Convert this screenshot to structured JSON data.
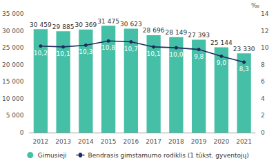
{
  "chart_data": {
    "type": "bar",
    "categories": [
      "2012",
      "2013",
      "2014",
      "2015",
      "2016",
      "2017",
      "2018",
      "2019",
      "2020",
      "2021"
    ],
    "series": [
      {
        "name": "Gimusieji",
        "type": "bar",
        "color": "#45bfa6",
        "values": [
          30459,
          29885,
          30369,
          31475,
          30623,
          28696,
          28149,
          27393,
          25144,
          23330
        ],
        "value_labels": [
          "30 459",
          "29 885",
          "30 369",
          "31 475",
          "30 623",
          "28 696",
          "28 149",
          "27 393",
          "25 144",
          "23 330"
        ]
      },
      {
        "name": "Bendrasis gimstamumo rodiklis (1 tūkst. gyventojų)",
        "type": "line",
        "color": "#1e2a5c",
        "axis": "y2",
        "marker": "circle",
        "values": [
          10.2,
          10.1,
          10.3,
          10.8,
          10.7,
          10.1,
          10.0,
          9.8,
          9.0,
          8.3
        ],
        "value_labels": [
          "10,2",
          "10,1",
          "10,3",
          "10,8",
          "10,7",
          "10,1",
          "10,0",
          "9,8",
          "9,0",
          "8,3"
        ]
      }
    ],
    "ylim": [
      0,
      35000
    ],
    "yticks": [
      {
        "value": 0,
        "label": "0"
      },
      {
        "value": 5000,
        "label": "5 000"
      },
      {
        "value": 10000,
        "label": "10 000"
      },
      {
        "value": 15000,
        "label": "15 000"
      },
      {
        "value": 20000,
        "label": "20 000"
      },
      {
        "value": 25000,
        "label": "25 000"
      },
      {
        "value": 30000,
        "label": "30 000"
      },
      {
        "value": 35000,
        "label": "35 000"
      }
    ],
    "y2label": "‰",
    "y2lim": [
      0,
      14
    ],
    "y2ticks": [
      0,
      2,
      4,
      6,
      8,
      10,
      12,
      14
    ],
    "data_labels": true,
    "legend": "bottom",
    "grid": false
  }
}
